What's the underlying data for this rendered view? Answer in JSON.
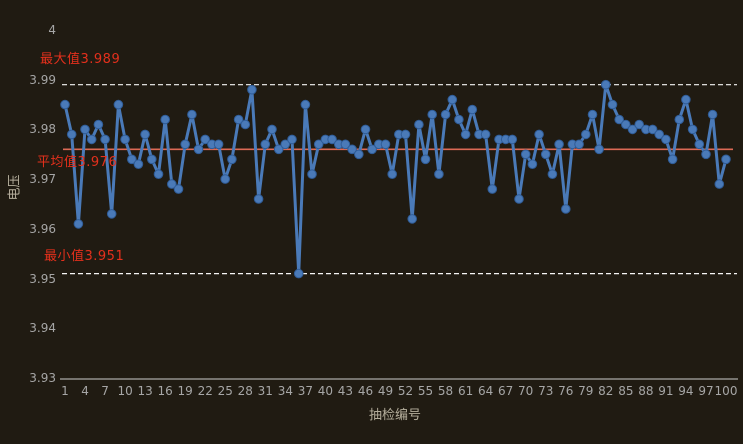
{
  "chart_data": {
    "type": "line",
    "title": "",
    "xlabel": "抽检编号",
    "ylabel": "电压",
    "x_start": 1,
    "x_end": 100,
    "values": [
      3.985,
      3.979,
      3.961,
      3.98,
      3.978,
      3.981,
      3.978,
      3.963,
      3.985,
      3.978,
      3.974,
      3.973,
      3.979,
      3.974,
      3.971,
      3.982,
      3.969,
      3.968,
      3.977,
      3.983,
      3.976,
      3.978,
      3.977,
      3.977,
      3.97,
      3.974,
      3.982,
      3.981,
      3.988,
      3.966,
      3.977,
      3.98,
      3.976,
      3.977,
      3.978,
      3.951,
      3.985,
      3.971,
      3.977,
      3.978,
      3.978,
      3.977,
      3.977,
      3.976,
      3.975,
      3.98,
      3.976,
      3.977,
      3.977,
      3.971,
      3.979,
      3.979,
      3.962,
      3.981,
      3.974,
      3.983,
      3.971,
      3.983,
      3.986,
      3.982,
      3.979,
      3.984,
      3.979,
      3.979,
      3.968,
      3.978,
      3.978,
      3.978,
      3.966,
      3.975,
      3.973,
      3.979,
      3.975,
      3.971,
      3.977,
      3.964,
      3.977,
      3.977,
      3.979,
      3.983,
      3.976,
      3.989,
      3.985,
      3.982,
      3.981,
      3.98,
      3.981,
      3.98,
      3.98,
      3.979,
      3.978,
      3.974,
      3.982,
      3.986,
      3.98,
      3.977,
      3.975,
      3.983,
      3.969,
      3.974
    ],
    "ylim": [
      3.93,
      4.0
    ],
    "ytick_labels": [
      "4",
      "3.99",
      "3.98",
      "3.97",
      "3.96",
      "3.95",
      "3.94",
      "3.93"
    ],
    "xtick_labels": [
      "1",
      "4",
      "7",
      "10",
      "13",
      "16",
      "19",
      "22",
      "25",
      "28",
      "31",
      "34",
      "37",
      "40",
      "43",
      "46",
      "49",
      "52",
      "55",
      "58",
      "61",
      "64",
      "67",
      "70",
      "73",
      "76",
      "79",
      "82",
      "85",
      "88",
      "91",
      "94",
      "97",
      "100"
    ],
    "annotations": {
      "max": {
        "label": "最大值3.989",
        "value": 3.989
      },
      "avg": {
        "label": "平均值3.976",
        "value": 3.976
      },
      "min": {
        "label": "最小值3.951",
        "value": 3.951
      }
    },
    "grid": "off",
    "legend_position": "none",
    "styles": {
      "background": "#201b12",
      "line_color": "#4a7ab8",
      "marker_fill": "#4a7ab8",
      "marker_edge": "#2f5c97",
      "avg_line_color": "#dc6a55",
      "annotation_text_color": "#e4301c",
      "dashed_line_color": "#f5f5f5",
      "tick_label_color": "#a6a6a6",
      "axis_title_color": "#b5ae9c",
      "axis_line_color": "#cccccc"
    }
  }
}
